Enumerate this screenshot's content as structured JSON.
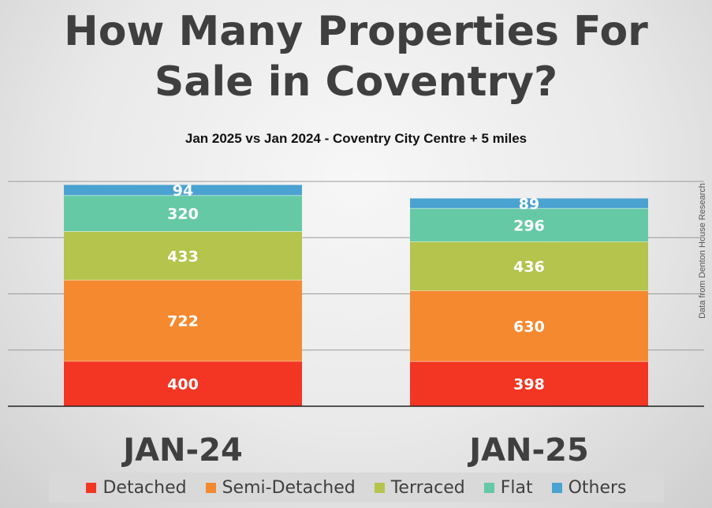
{
  "header": {
    "title_line1": "How Many Properties For",
    "title_line2": "Sale in Coventry?",
    "subtitle": "Jan 2025 vs Jan 2024 - Coventry City Centre + 5 miles",
    "source": "Data from Denton House Research"
  },
  "colors": {
    "Detached": "#f33523",
    "Semi-Detached": "#f5892f",
    "Terraced": "#b4c44c",
    "Flat": "#65c9a6",
    "Others": "#4aa2d0"
  },
  "chart_data": {
    "type": "bar",
    "stacked": true,
    "categories": [
      "JAN-24",
      "JAN-25"
    ],
    "series": [
      {
        "name": "Detached",
        "values": [
          400,
          398
        ]
      },
      {
        "name": "Semi-Detached",
        "values": [
          722,
          630
        ]
      },
      {
        "name": "Terraced",
        "values": [
          433,
          436
        ]
      },
      {
        "name": "Flat",
        "values": [
          320,
          296
        ]
      },
      {
        "name": "Others",
        "values": [
          94,
          89
        ]
      }
    ],
    "title": "How Many Properties For Sale in Coventry?",
    "subtitle": "Jan 2025 vs Jan 2024 - Coventry City Centre + 5 miles",
    "ylim": [
      0,
      2000
    ],
    "gridlines": [
      500,
      1000,
      1500,
      2000
    ],
    "grid": true,
    "legend_position": "bottom",
    "data_labels": true
  }
}
